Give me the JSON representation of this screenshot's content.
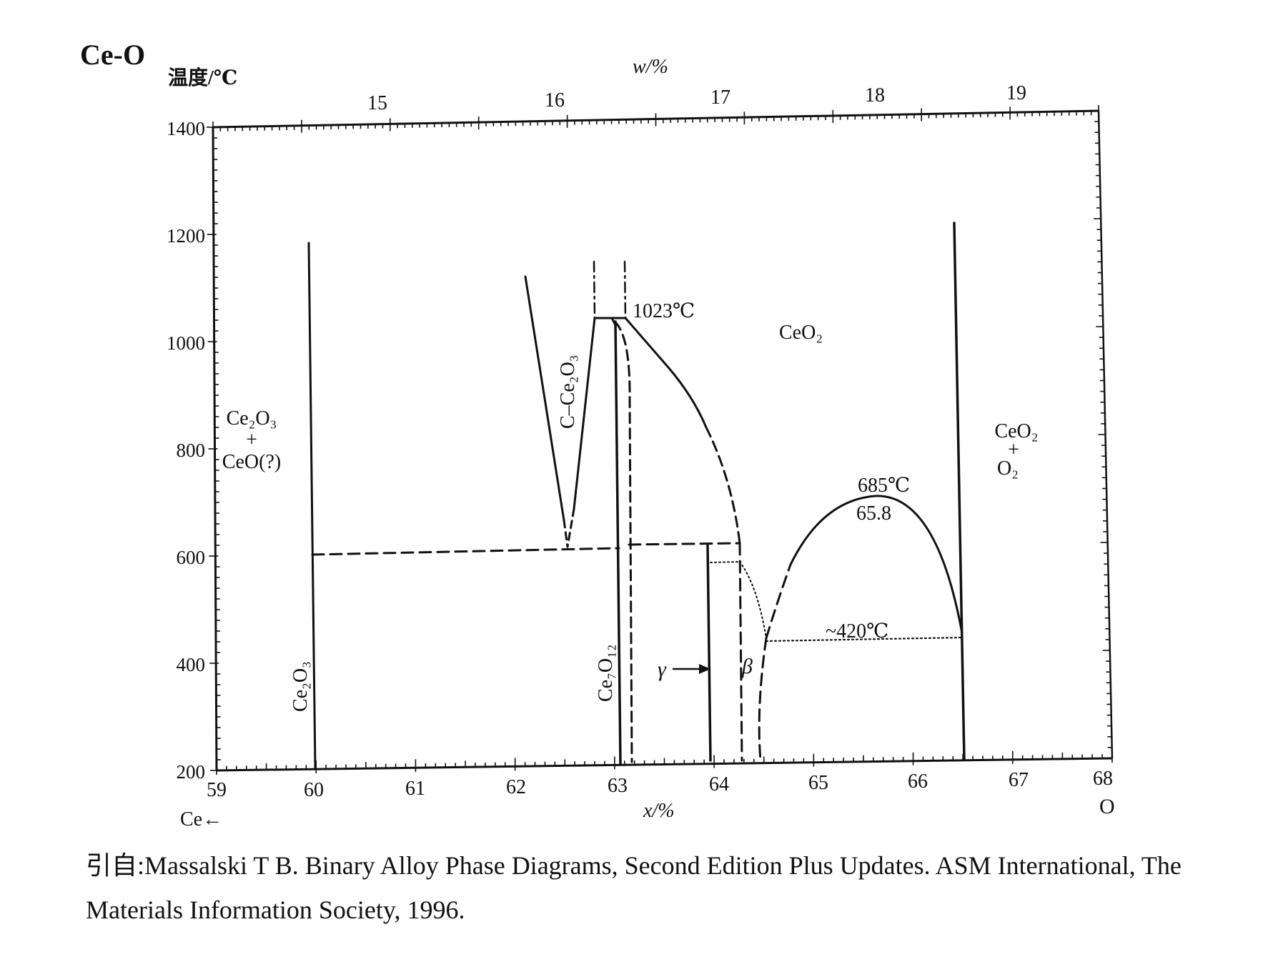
{
  "title": "Ce-O",
  "axes": {
    "left_label": "温度/℃",
    "top_label": "w/%",
    "bottom_label": "x/%",
    "bottom_left": "Ce←",
    "bottom_right": "O",
    "y_ticks": [
      "1400",
      "1200",
      "1000",
      "800",
      "600",
      "400",
      "200"
    ],
    "x_ticks": [
      "59",
      "60",
      "61",
      "62",
      "63",
      "64",
      "65",
      "66",
      "67",
      "68"
    ],
    "w_ticks": [
      "15",
      "16",
      "17",
      "18",
      "19"
    ]
  },
  "labels": {
    "ce2o3_ceo_line1": "Ce₂O₃",
    "ce2o3_ceo_line2": "+",
    "ce2o3_ceo_line3": "CeO(?)",
    "c_ce2o3": "C–Ce₂O₃",
    "t1023": "1023℃",
    "ceo2": "CeO₂",
    "ceo2_o2_line1": "CeO₂",
    "ceo2_o2_line2": "+",
    "ceo2_o2_line3": "O₂",
    "t685": "685℃",
    "c658": "65.8",
    "t420": "~420℃",
    "ce2o3": "Ce₂O₃",
    "ce7o12": "Ce₇O₁₂",
    "gamma": "γ",
    "beta": "β"
  },
  "caption": {
    "line1": "引自:Massalski T B. Binary Alloy Phase Diagrams, Second Edition Plus Updates. ASM International, The",
    "line2": "Materials Information Society, 1996."
  },
  "colors": {
    "ink": "#111111",
    "background": "#ffffff"
  }
}
